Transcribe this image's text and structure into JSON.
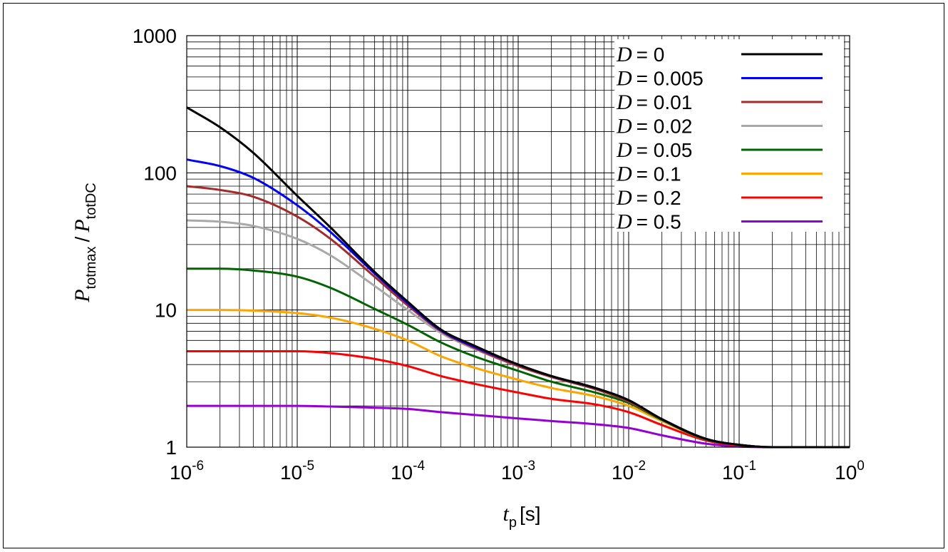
{
  "chart_data": {
    "type": "line",
    "xlabel": {
      "symbol": "t",
      "subscript": "p",
      "unit": "[s]"
    },
    "ylabel": {
      "num_symbol": "P",
      "num_subscript": "totmax",
      "separator": "/",
      "den_symbol": "P",
      "den_subscript": "totDC"
    },
    "x_scale": "log",
    "y_scale": "log",
    "xlim": [
      1e-06,
      1
    ],
    "ylim": [
      1,
      1000
    ],
    "grid": true,
    "legend_position": "top-right",
    "x_ticks": [
      {
        "value": 1e-06,
        "base": "10",
        "exp": "-6"
      },
      {
        "value": 1e-05,
        "base": "10",
        "exp": "-5"
      },
      {
        "value": 0.0001,
        "base": "10",
        "exp": "-4"
      },
      {
        "value": 0.001,
        "base": "10",
        "exp": "-3"
      },
      {
        "value": 0.01,
        "base": "10",
        "exp": "-2"
      },
      {
        "value": 0.1,
        "base": "10",
        "exp": "-1"
      },
      {
        "value": 1,
        "base": "10",
        "exp": "0"
      }
    ],
    "y_ticks": [
      {
        "value": 1,
        "label": "1"
      },
      {
        "value": 10,
        "label": "10"
      },
      {
        "value": 100,
        "label": "100"
      },
      {
        "value": 1000,
        "label": "1000"
      }
    ],
    "series": [
      {
        "name": "D = 0",
        "symbol": "D",
        "value_text": "= 0",
        "color": "#000000",
        "x": [
          1e-06,
          2e-06,
          4e-06,
          1e-05,
          2e-05,
          5e-05,
          0.0001,
          0.0002,
          0.0004,
          0.001,
          0.002,
          0.005,
          0.01,
          0.02,
          0.05,
          0.1,
          0.2,
          1
        ],
        "y": [
          300,
          215,
          140,
          68,
          40,
          19,
          11.5,
          7.2,
          5.5,
          4.0,
          3.3,
          2.7,
          2.2,
          1.6,
          1.15,
          1.04,
          1.0,
          1.0
        ]
      },
      {
        "name": "D = 0.005",
        "symbol": "D",
        "value_text": "= 0.005",
        "color": "#0000ff",
        "x": [
          1e-06,
          2e-06,
          4e-06,
          1e-05,
          2e-05,
          5e-05,
          0.0001,
          0.0002,
          0.0004,
          0.001,
          0.002,
          0.005,
          0.01,
          0.02,
          0.05,
          0.1,
          0.2,
          1
        ],
        "y": [
          125,
          112,
          92,
          58,
          37,
          18.5,
          11.2,
          7.1,
          5.4,
          4.0,
          3.3,
          2.7,
          2.2,
          1.6,
          1.15,
          1.04,
          1.0,
          1.0
        ]
      },
      {
        "name": "D = 0.01",
        "symbol": "D",
        "value_text": "= 0.01",
        "color": "#a52a2a",
        "x": [
          1e-06,
          2e-06,
          4e-06,
          1e-05,
          2e-05,
          5e-05,
          0.0001,
          0.0002,
          0.0004,
          0.001,
          0.002,
          0.005,
          0.01,
          0.02,
          0.05,
          0.1,
          0.2,
          1
        ],
        "y": [
          80,
          75,
          67,
          48,
          33,
          17.5,
          10.8,
          7.0,
          5.3,
          3.9,
          3.25,
          2.65,
          2.15,
          1.6,
          1.15,
          1.04,
          1.0,
          1.0
        ]
      },
      {
        "name": "D = 0.02",
        "symbol": "D",
        "value_text": "= 0.02",
        "color": "#a9a9a9",
        "x": [
          1e-06,
          2e-06,
          4e-06,
          1e-05,
          2e-05,
          5e-05,
          0.0001,
          0.0002,
          0.0004,
          0.001,
          0.002,
          0.005,
          0.01,
          0.02,
          0.05,
          0.1,
          0.2,
          1
        ],
        "y": [
          45,
          44,
          41,
          33,
          25,
          15,
          10,
          6.8,
          5.2,
          3.9,
          3.25,
          2.65,
          2.15,
          1.6,
          1.15,
          1.04,
          1.0,
          1.0
        ]
      },
      {
        "name": "D = 0.05",
        "symbol": "D",
        "value_text": "= 0.05",
        "color": "#006400",
        "x": [
          1e-06,
          2e-06,
          4e-06,
          1e-05,
          2e-05,
          5e-05,
          0.0001,
          0.0002,
          0.0004,
          0.001,
          0.002,
          0.005,
          0.01,
          0.02,
          0.05,
          0.1,
          0.2,
          1
        ],
        "y": [
          20,
          20,
          19.4,
          17.5,
          14.5,
          10.2,
          7.8,
          5.8,
          4.6,
          3.6,
          3.0,
          2.5,
          2.1,
          1.58,
          1.14,
          1.04,
          1.0,
          1.0
        ]
      },
      {
        "name": "D = 0.1",
        "symbol": "D",
        "value_text": "= 0.1",
        "color": "#ffa500",
        "x": [
          1e-06,
          2e-06,
          4e-06,
          1e-05,
          2e-05,
          5e-05,
          0.0001,
          0.0002,
          0.0004,
          0.001,
          0.002,
          0.005,
          0.01,
          0.02,
          0.05,
          0.1,
          0.2,
          1
        ],
        "y": [
          10,
          10,
          9.9,
          9.5,
          8.8,
          7.3,
          6.0,
          4.6,
          3.8,
          3.1,
          2.7,
          2.35,
          2.0,
          1.55,
          1.14,
          1.04,
          1.0,
          1.0
        ]
      },
      {
        "name": "D = 0.2",
        "symbol": "D",
        "value_text": "= 0.2",
        "color": "#ff0000",
        "x": [
          1e-06,
          2e-06,
          4e-06,
          1e-05,
          2e-05,
          5e-05,
          0.0001,
          0.0002,
          0.0004,
          0.001,
          0.002,
          0.005,
          0.01,
          0.02,
          0.05,
          0.1,
          0.2,
          1
        ],
        "y": [
          5,
          5,
          5,
          5,
          4.85,
          4.4,
          3.9,
          3.3,
          2.9,
          2.5,
          2.25,
          2.05,
          1.8,
          1.45,
          1.12,
          1.03,
          1.0,
          1.0
        ]
      },
      {
        "name": "D = 0.5",
        "symbol": "D",
        "value_text": "= 0.5",
        "color": "#9400d3",
        "x": [
          1e-06,
          2e-06,
          4e-06,
          1e-05,
          2e-05,
          5e-05,
          0.0001,
          0.0002,
          0.0004,
          0.001,
          0.002,
          0.005,
          0.01,
          0.02,
          0.05,
          0.1,
          0.2,
          1
        ],
        "y": [
          2,
          2,
          2,
          2,
          1.98,
          1.94,
          1.9,
          1.8,
          1.72,
          1.62,
          1.55,
          1.47,
          1.38,
          1.22,
          1.06,
          1.01,
          1.0,
          1.0
        ]
      }
    ]
  }
}
